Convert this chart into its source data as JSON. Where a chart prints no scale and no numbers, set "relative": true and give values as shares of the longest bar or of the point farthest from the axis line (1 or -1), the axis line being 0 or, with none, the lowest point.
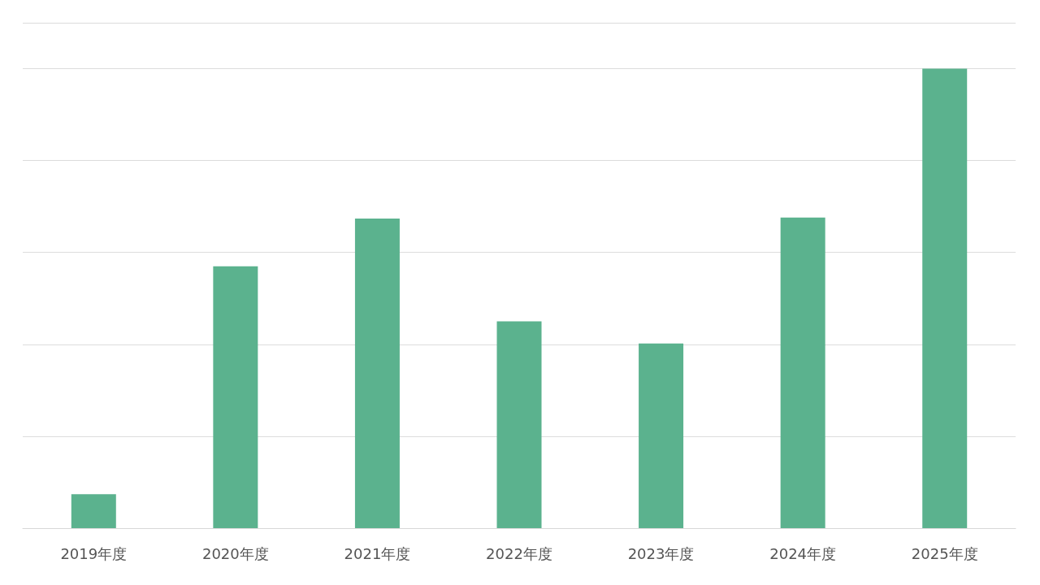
{
  "chart_data": {
    "type": "bar",
    "categories": [
      "2019年度",
      "2020年度",
      "2021年度",
      "2022年度",
      "2023年度",
      "2024年度",
      "2025年度"
    ],
    "values": [
      0.074,
      0.57,
      0.674,
      0.45,
      0.402,
      0.676,
      1
    ],
    "color": "#5bb28e",
    "relative": true,
    "grid": "y"
  }
}
